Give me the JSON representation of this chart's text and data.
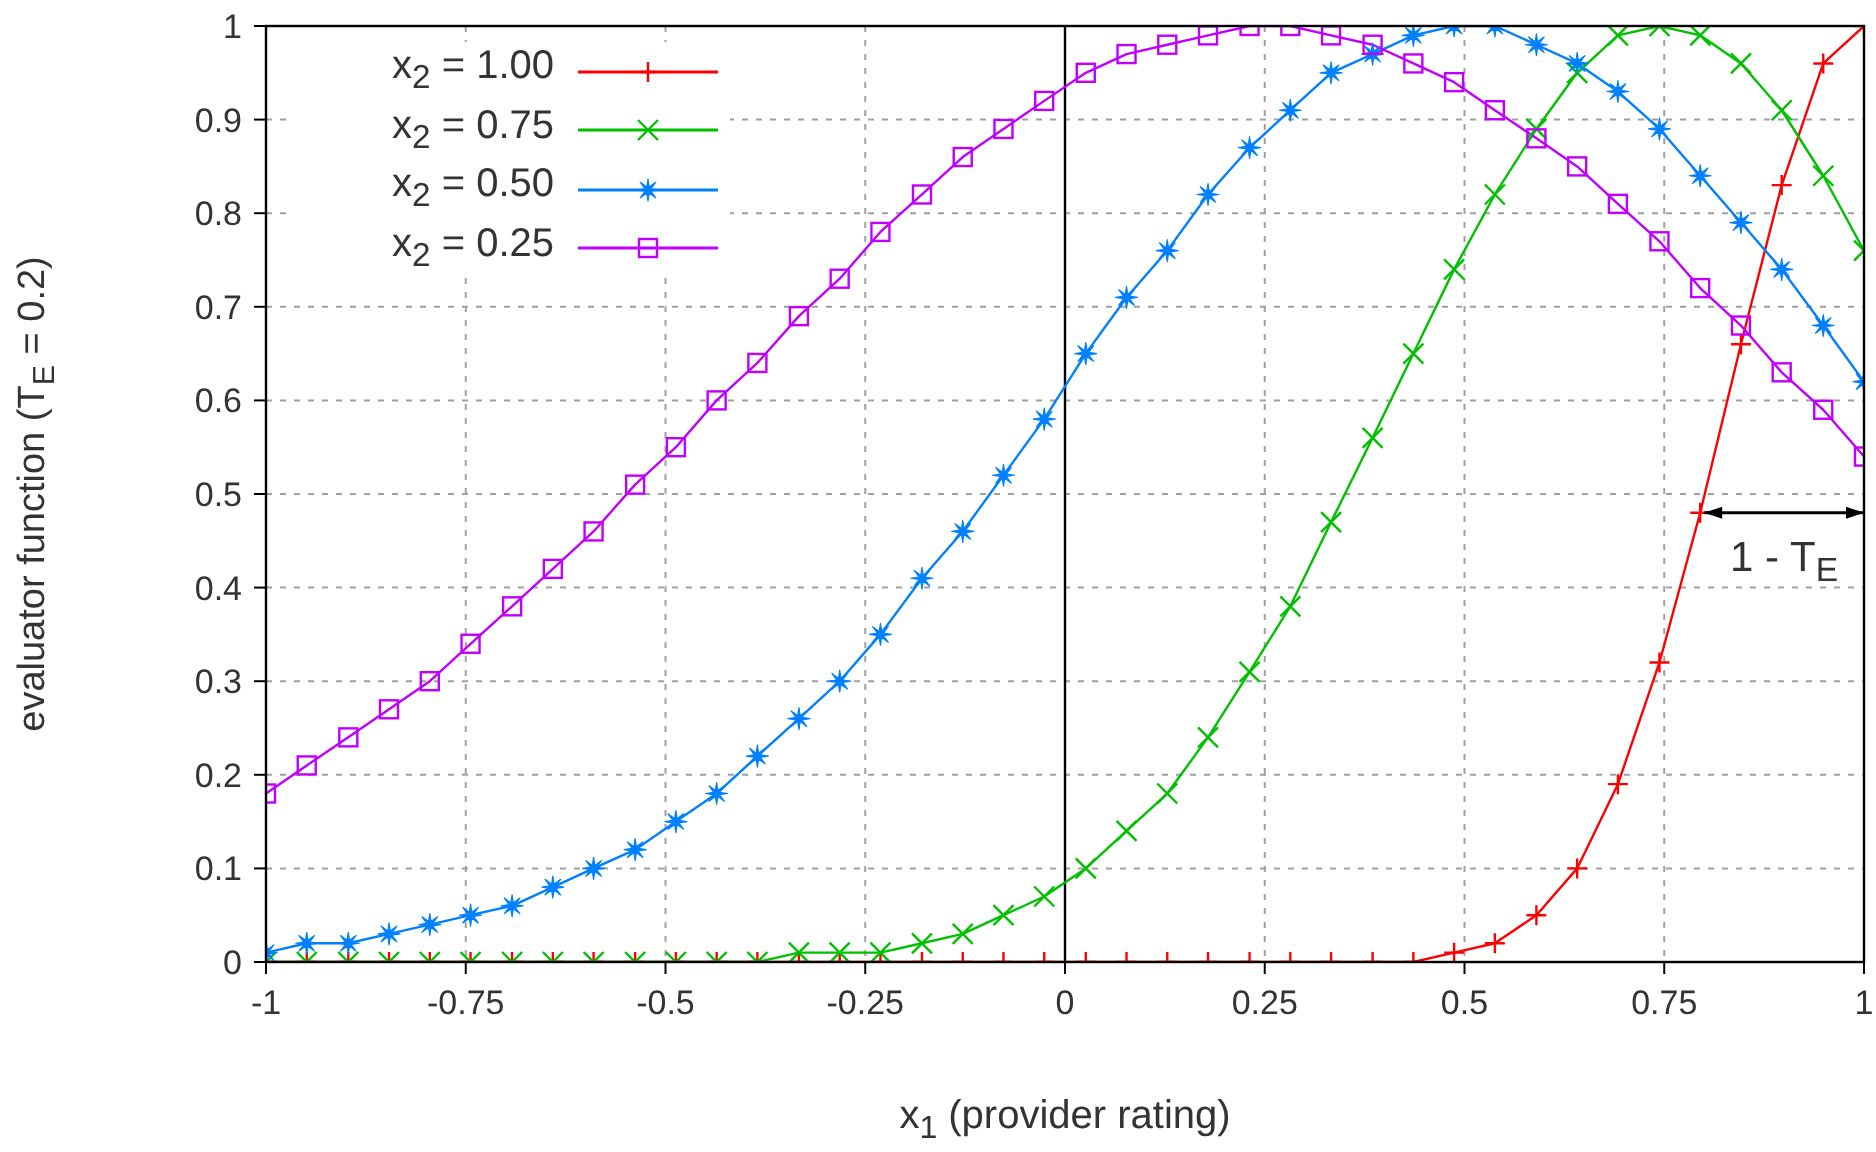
{
  "chart_data": {
    "type": "line",
    "xlabel": "x$_{1}$ (provider rating)",
    "ylabel": "evaluator function (T$_{E}$ = 0.2)",
    "x": [
      -1.0,
      -0.949,
      -0.897,
      -0.846,
      -0.795,
      -0.744,
      -0.692,
      -0.641,
      -0.59,
      -0.538,
      -0.487,
      -0.436,
      -0.385,
      -0.333,
      -0.282,
      -0.231,
      -0.179,
      -0.128,
      -0.077,
      -0.026,
      0.026,
      0.077,
      0.128,
      0.179,
      0.231,
      0.282,
      0.333,
      0.385,
      0.436,
      0.487,
      0.538,
      0.59,
      0.641,
      0.692,
      0.744,
      0.795,
      0.846,
      0.897,
      0.949,
      1.0
    ],
    "series": [
      {
        "name": "x$_{2}$ = 1.00",
        "color": "#ff0000",
        "marker": "cross",
        "values": [
          0,
          0,
          0,
          0,
          0,
          0,
          0,
          0,
          0,
          0,
          0,
          0,
          0,
          0,
          0,
          0,
          0,
          0,
          0,
          0,
          0,
          0,
          0,
          0,
          0,
          0,
          0,
          0,
          0,
          0.01,
          0.02,
          0.05,
          0.1,
          0.19,
          0.32,
          0.48,
          0.66,
          0.83,
          0.96,
          1.0
        ]
      },
      {
        "name": "x$_{2}$ = 0.75",
        "color": "#00c000",
        "marker": "x",
        "values": [
          0,
          0,
          0,
          0,
          0,
          0,
          0,
          0,
          0,
          0,
          0,
          0,
          0,
          0.01,
          0.01,
          0.01,
          0.02,
          0.03,
          0.05,
          0.07,
          0.1,
          0.14,
          0.18,
          0.24,
          0.31,
          0.38,
          0.47,
          0.56,
          0.65,
          0.74,
          0.82,
          0.89,
          0.95,
          0.99,
          1.0,
          0.99,
          0.96,
          0.91,
          0.84,
          0.76
        ]
      },
      {
        "name": "x$_{2}$ = 0.50",
        "color": "#0080ff",
        "marker": "star",
        "values": [
          0.01,
          0.02,
          0.02,
          0.03,
          0.04,
          0.05,
          0.06,
          0.08,
          0.1,
          0.12,
          0.15,
          0.18,
          0.22,
          0.26,
          0.3,
          0.35,
          0.41,
          0.46,
          0.52,
          0.58,
          0.65,
          0.71,
          0.76,
          0.82,
          0.87,
          0.91,
          0.95,
          0.97,
          0.99,
          1.0,
          1.0,
          0.98,
          0.96,
          0.93,
          0.89,
          0.84,
          0.79,
          0.74,
          0.68,
          0.62
        ]
      },
      {
        "name": "x$_{2}$ = 0.25",
        "color": "#c000ff",
        "marker": "square",
        "values": [
          0.18,
          0.21,
          0.24,
          0.27,
          0.3,
          0.34,
          0.38,
          0.42,
          0.46,
          0.51,
          0.55,
          0.6,
          0.64,
          0.69,
          0.73,
          0.78,
          0.82,
          0.86,
          0.89,
          0.92,
          0.95,
          0.97,
          0.98,
          0.99,
          1.0,
          1.0,
          0.99,
          0.98,
          0.96,
          0.94,
          0.91,
          0.88,
          0.85,
          0.81,
          0.77,
          0.72,
          0.68,
          0.63,
          0.59,
          0.54
        ]
      }
    ],
    "xlim": [
      -1,
      1
    ],
    "xticks": [
      -1,
      -0.75,
      -0.5,
      -0.25,
      0,
      0.25,
      0.5,
      0.75,
      1
    ],
    "ylim": [
      0,
      1
    ],
    "yticks": [
      0,
      0.1,
      0.2,
      0.3,
      0.4,
      0.5,
      0.6,
      0.7,
      0.8,
      0.9,
      1
    ],
    "grid": true,
    "legend": "top left",
    "line_style": "solid",
    "ref_lines": [
      {
        "axis": "x",
        "value": 0,
        "color": "#000000"
      }
    ],
    "annotations": [
      {
        "text": "1 - T$_{E}$",
        "x": 0.8,
        "y": 0.48
      }
    ]
  }
}
